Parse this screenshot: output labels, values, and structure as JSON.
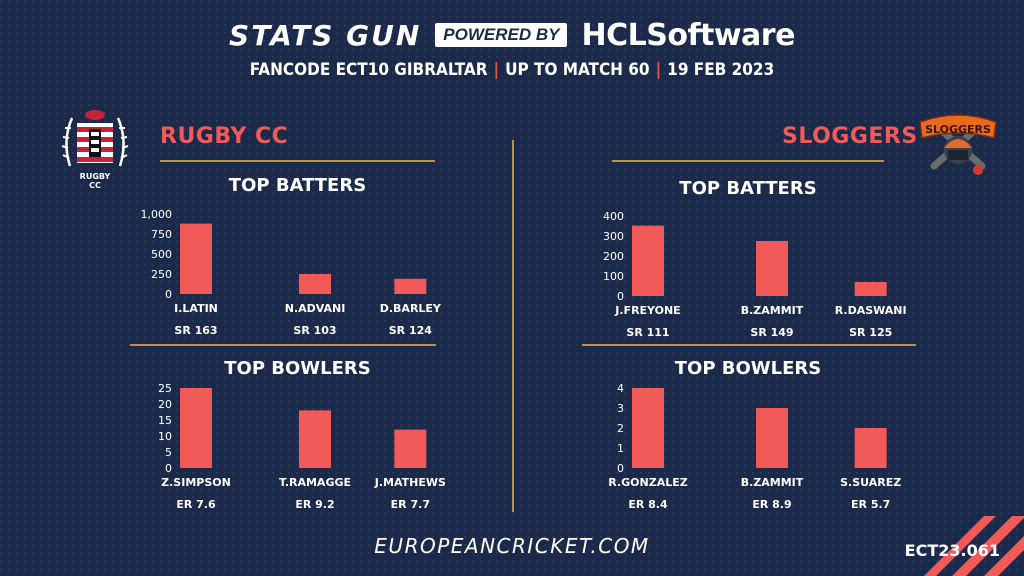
{
  "header": {
    "stats_gun": "STATS GUN",
    "powered_by": "POWERED BY",
    "hcl_logo": "HCLSoftware",
    "subtitle_parts": [
      "FANCODE ECT10 GIBRALTAR",
      "UP TO MATCH  60",
      "19 FEB 2023"
    ]
  },
  "teams": [
    {
      "name": "RUGBY CC",
      "logo_text": [
        "RUGBY",
        "CC"
      ],
      "batters_title": "TOP BATTERS",
      "bowlers_title": "TOP BOWLERS"
    },
    {
      "name": "SLOGGERS",
      "logo_text": "SLOGGERS",
      "batters_title": "TOP BATTERS",
      "bowlers_title": "TOP BOWLERS"
    }
  ],
  "chart_data": [
    {
      "type": "bar",
      "title": "TOP BATTERS",
      "team": "RUGBY CC",
      "categories": [
        "I.LATIN",
        "N.ADVANI",
        "D.BARLEY"
      ],
      "values": [
        880,
        250,
        190
      ],
      "sublabels": [
        "SR 163",
        "SR 103",
        "SR 124"
      ],
      "yticks": [
        "0",
        "250",
        "500",
        "750",
        "1,000"
      ],
      "ylim": [
        0,
        1000
      ],
      "color": "#f15a59"
    },
    {
      "type": "bar",
      "title": "TOP BOWLERS",
      "team": "RUGBY CC",
      "categories": [
        "Z.SIMPSON",
        "T.RAMAGGE",
        "J.MATHEWS"
      ],
      "values": [
        25,
        18,
        12
      ],
      "sublabels": [
        "ER 7.6",
        "ER 9.2",
        "ER 7.7"
      ],
      "yticks": [
        "0",
        "5",
        "10",
        "15",
        "20",
        "25"
      ],
      "ylim": [
        0,
        25
      ],
      "color": "#f15a59"
    },
    {
      "type": "bar",
      "title": "TOP BATTERS",
      "team": "SLOGGERS",
      "categories": [
        "J.FREYONE",
        "B.ZAMMIT",
        "R.DASWANI"
      ],
      "values": [
        352,
        275,
        70
      ],
      "sublabels": [
        "SR 111",
        "SR 149",
        "SR 125"
      ],
      "yticks": [
        "0",
        "100",
        "200",
        "300",
        "400"
      ],
      "ylim": [
        0,
        400
      ],
      "color": "#f15a59"
    },
    {
      "type": "bar",
      "title": "TOP BOWLERS",
      "team": "SLOGGERS",
      "categories": [
        "R.GONZALEZ",
        "B.ZAMMIT",
        "S.SUAREZ"
      ],
      "values": [
        4,
        3,
        2
      ],
      "sublabels": [
        "ER 8.4",
        "ER 8.9",
        "ER 5.7"
      ],
      "yticks": [
        "0",
        "1",
        "2",
        "3",
        "4"
      ],
      "ylim": [
        0,
        4
      ],
      "color": "#f15a59"
    }
  ],
  "footer": {
    "website": "EUROPEANCRICKET.COM",
    "code": "ECT23.061"
  }
}
